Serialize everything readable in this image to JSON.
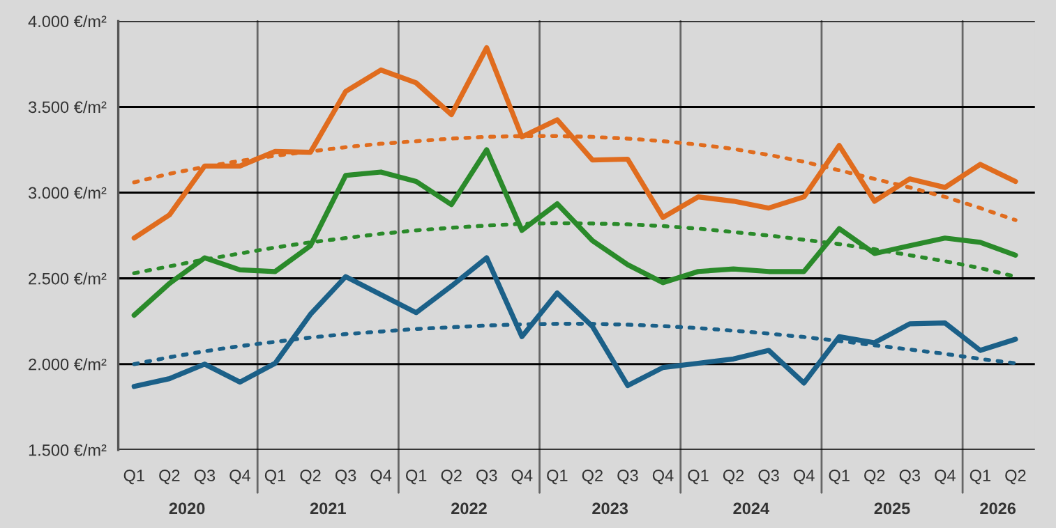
{
  "chart_data": {
    "type": "line",
    "categories": [
      "Q1",
      "Q2",
      "Q3",
      "Q4",
      "Q1",
      "Q2",
      "Q3",
      "Q4",
      "Q1",
      "Q2",
      "Q3",
      "Q4",
      "Q1",
      "Q2",
      "Q3",
      "Q4",
      "Q1",
      "Q2",
      "Q3",
      "Q4",
      "Q1",
      "Q2",
      "Q3",
      "Q4",
      "Q1",
      "Q2"
    ],
    "series": [
      {
        "color": "#e06c1e",
        "line_style": "solid",
        "values": [
          2735,
          2870,
          3155,
          3155,
          3240,
          3235,
          3590,
          3715,
          3640,
          3455,
          3845,
          3325,
          3425,
          3190,
          3195,
          2855,
          2975,
          2950,
          2910,
          2975,
          3275,
          2950,
          3080,
          3030,
          3165,
          3065
        ]
      },
      {
        "color": "#2a8a2a",
        "line_style": "solid",
        "values": [
          2285,
          2470,
          2620,
          2550,
          2540,
          2690,
          3100,
          3120,
          3065,
          2930,
          3250,
          2780,
          2935,
          2720,
          2580,
          2475,
          2540,
          2555,
          2540,
          2540,
          2790,
          2645,
          2690,
          2735,
          2710,
          2635
        ]
      },
      {
        "color": "#1b6088",
        "line_style": "solid",
        "values": [
          1870,
          1915,
          2000,
          1895,
          2005,
          2290,
          2510,
          2405,
          2300,
          2455,
          2620,
          2160,
          2415,
          2220,
          1875,
          1980,
          2005,
          2030,
          2080,
          1890,
          2160,
          2125,
          2235,
          2240,
          2080,
          2145
        ]
      },
      {
        "color": "#e06c1e",
        "line_style": "dotted",
        "values": [
          3060,
          3110,
          3150,
          3185,
          3215,
          3240,
          3265,
          3285,
          3300,
          3315,
          3325,
          3330,
          3330,
          3325,
          3315,
          3300,
          3280,
          3255,
          3220,
          3180,
          3130,
          3080,
          3030,
          2975,
          2910,
          2840
        ]
      },
      {
        "color": "#2a8a2a",
        "line_style": "dotted",
        "values": [
          2530,
          2570,
          2610,
          2645,
          2680,
          2710,
          2735,
          2760,
          2780,
          2795,
          2808,
          2818,
          2822,
          2820,
          2815,
          2805,
          2790,
          2770,
          2750,
          2725,
          2700,
          2670,
          2635,
          2600,
          2560,
          2510
        ]
      },
      {
        "color": "#1b6088",
        "line_style": "dotted",
        "values": [
          2000,
          2040,
          2075,
          2105,
          2130,
          2155,
          2175,
          2190,
          2205,
          2215,
          2225,
          2232,
          2235,
          2235,
          2230,
          2222,
          2210,
          2195,
          2178,
          2158,
          2135,
          2110,
          2085,
          2060,
          2030,
          2005
        ]
      }
    ],
    "ylim": [
      1500,
      4000
    ],
    "yticks": [
      {
        "value": 1500,
        "label": "1.500 €/m²"
      },
      {
        "value": 2000,
        "label": "2.000 €/m²"
      },
      {
        "value": 2500,
        "label": "2.500 €/m²"
      },
      {
        "value": 3000,
        "label": "3.000 €/m²"
      },
      {
        "value": 3500,
        "label": "3.500 €/m²"
      },
      {
        "value": 4000,
        "label": "4.000 €/m²"
      }
    ],
    "grid": "y",
    "marker": "none",
    "legend": false,
    "annotations": [
      "2020",
      "2021",
      "2022",
      "2023",
      "2024",
      "2025",
      "2026"
    ]
  }
}
